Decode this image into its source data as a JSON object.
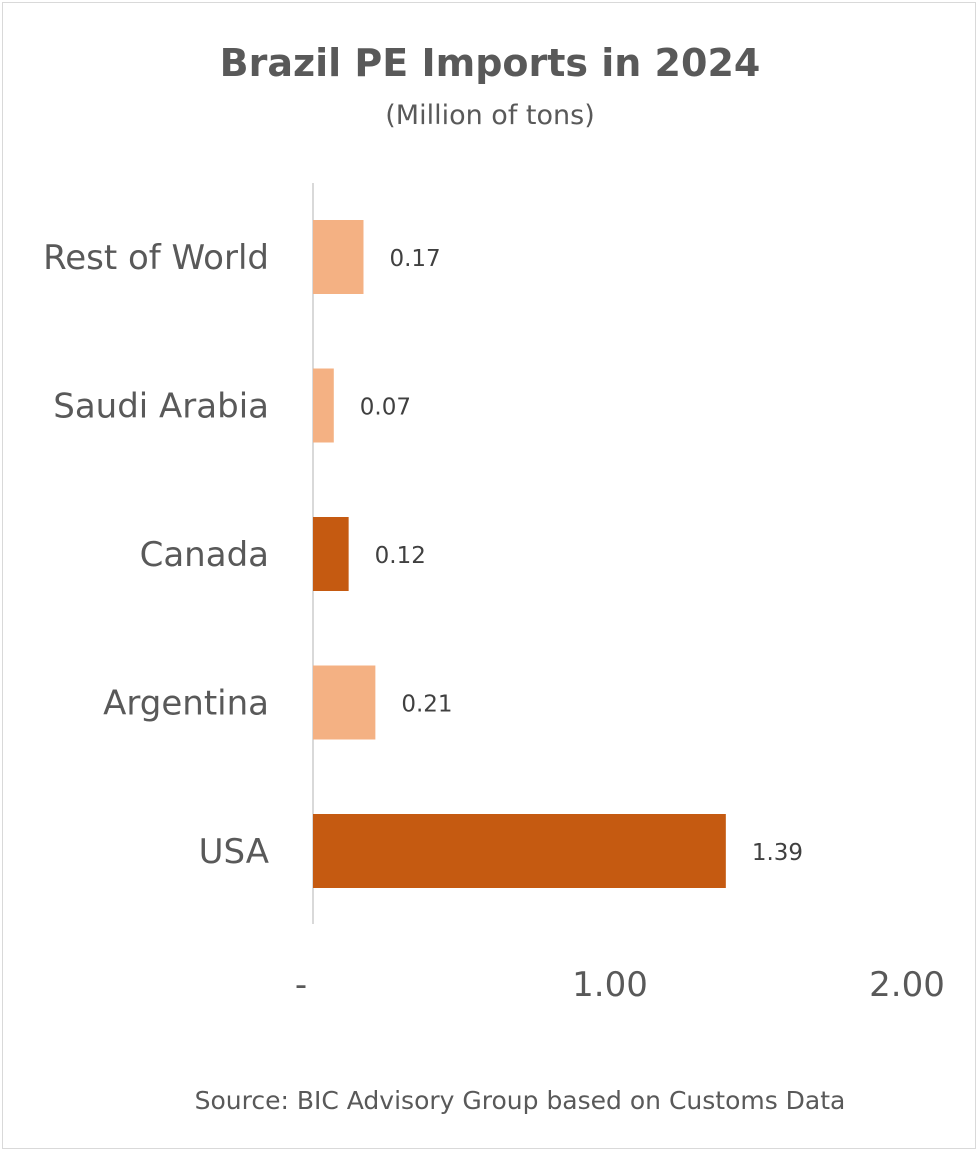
{
  "chart_data": {
    "type": "bar",
    "orientation": "horizontal",
    "title": "Brazil PE Imports in 2024",
    "subtitle": "(Million of tons)",
    "categories": [
      "Rest of World",
      "Saudi Arabia",
      "Canada",
      "Argentina",
      "USA"
    ],
    "values": [
      0.17,
      0.07,
      0.12,
      0.21,
      1.39
    ],
    "value_labels": [
      "0.17",
      "0.07",
      "0.12",
      "0.21",
      "1.39"
    ],
    "bar_colors": [
      "#f4b183",
      "#f4b183",
      "#c55a11",
      "#f4b183",
      "#c55a11"
    ],
    "xlim": [
      0,
      2
    ],
    "x_ticks": [
      0,
      1,
      2
    ],
    "x_tick_labels": [
      "-",
      "1.00",
      "2.00"
    ],
    "grid": false,
    "legend": "none",
    "source": "Source: BIC Advisory Group based on Customs Data"
  }
}
